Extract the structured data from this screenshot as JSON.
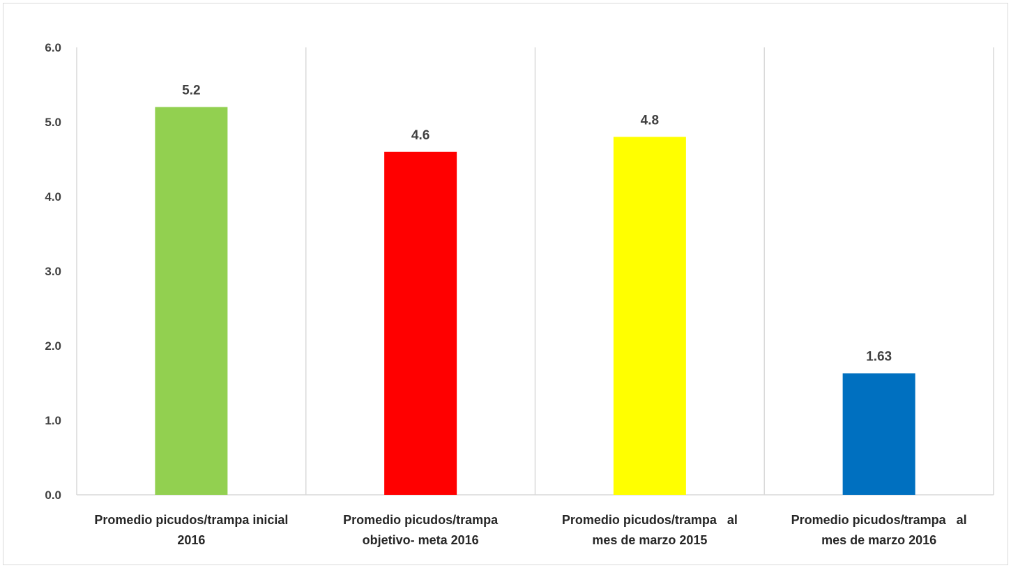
{
  "chart_data": {
    "type": "bar",
    "title": "",
    "xlabel": "",
    "ylabel": "",
    "ylim": [
      0,
      6
    ],
    "yticks": [
      "0.0",
      "1.0",
      "2.0",
      "3.0",
      "4.0",
      "5.0",
      "6.0"
    ],
    "grid": "vertical category separators",
    "legend": "none",
    "categories": [
      [
        "Promedio picudos/trampa inicial",
        "2016"
      ],
      [
        "Promedio picudos/trampa",
        "objetivo- meta 2016"
      ],
      [
        "Promedio picudos/trampa   al",
        "mes de marzo 2015"
      ],
      [
        "Promedio picudos/trampa   al",
        "mes de marzo 2016"
      ]
    ],
    "values": [
      5.2,
      4.6,
      4.8,
      1.63
    ],
    "data_labels": [
      "5.2",
      "4.6",
      "4.8",
      "1.63"
    ],
    "colors": [
      "#92d050",
      "#ff0000",
      "#ffff00",
      "#0070c0"
    ]
  }
}
